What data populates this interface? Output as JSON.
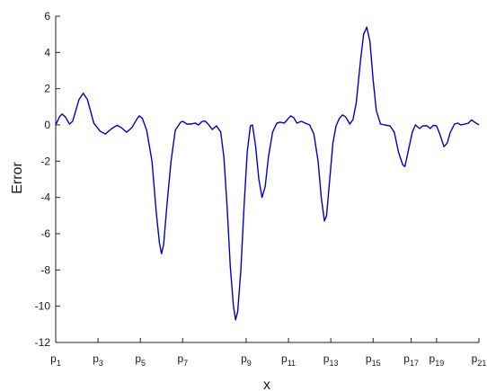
{
  "chart_data": {
    "type": "line",
    "title": "",
    "xlabel": "x",
    "ylabel": "Error",
    "ylim": [
      -12,
      6
    ],
    "yticks": [
      -12,
      -10,
      -8,
      -6,
      -4,
      -2,
      0,
      2,
      4,
      6
    ],
    "xlim": [
      0,
      20
    ],
    "xticks": [
      {
        "x": 0,
        "base": "p",
        "sub": "1"
      },
      {
        "x": 2,
        "base": "p",
        "sub": "3"
      },
      {
        "x": 4,
        "base": "p",
        "sub": "5"
      },
      {
        "x": 6,
        "base": "p",
        "sub": "7"
      },
      {
        "x": 9,
        "base": "p",
        "sub": "9"
      },
      {
        "x": 11,
        "base": "p",
        "sub": "11"
      },
      {
        "x": 13,
        "base": "p",
        "sub": "13"
      },
      {
        "x": 15,
        "base": "p",
        "sub": "15"
      },
      {
        "x": 16.8,
        "base": "p",
        "sub": "17"
      },
      {
        "x": 18,
        "base": "p",
        "sub": "19"
      },
      {
        "x": 20,
        "base": "p",
        "sub": "21"
      }
    ],
    "grid": false,
    "series": [
      {
        "color": "#0000cc",
        "points": [
          [
            0.0,
            0.0
          ],
          [
            0.18,
            0.45
          ],
          [
            0.3,
            0.6
          ],
          [
            0.45,
            0.45
          ],
          [
            0.65,
            0.05
          ],
          [
            0.8,
            0.2
          ],
          [
            1.1,
            1.4
          ],
          [
            1.3,
            1.75
          ],
          [
            1.5,
            1.4
          ],
          [
            1.8,
            0.1
          ],
          [
            2.1,
            -0.35
          ],
          [
            2.35,
            -0.5
          ],
          [
            2.65,
            -0.2
          ],
          [
            2.9,
            -0.02
          ],
          [
            3.1,
            -0.15
          ],
          [
            3.35,
            -0.4
          ],
          [
            3.6,
            -0.15
          ],
          [
            3.85,
            0.35
          ],
          [
            3.95,
            0.5
          ],
          [
            4.1,
            0.35
          ],
          [
            4.3,
            -0.3
          ],
          [
            4.55,
            -2.0
          ],
          [
            4.75,
            -4.8
          ],
          [
            4.9,
            -6.5
          ],
          [
            5.0,
            -7.1
          ],
          [
            5.1,
            -6.6
          ],
          [
            5.25,
            -4.5
          ],
          [
            5.45,
            -2.0
          ],
          [
            5.65,
            -0.3
          ],
          [
            5.9,
            0.15
          ],
          [
            6.0,
            0.2
          ],
          [
            6.2,
            0.05
          ],
          [
            6.4,
            0.05
          ],
          [
            6.6,
            0.1
          ],
          [
            6.75,
            0.0
          ],
          [
            6.9,
            0.18
          ],
          [
            7.05,
            0.22
          ],
          [
            7.2,
            0.05
          ],
          [
            7.4,
            -0.25
          ],
          [
            7.6,
            -0.05
          ],
          [
            7.8,
            -0.4
          ],
          [
            7.95,
            -1.8
          ],
          [
            8.1,
            -4.5
          ],
          [
            8.25,
            -7.8
          ],
          [
            8.4,
            -10.0
          ],
          [
            8.5,
            -10.75
          ],
          [
            8.6,
            -10.3
          ],
          [
            8.75,
            -8.0
          ],
          [
            8.9,
            -4.5
          ],
          [
            9.05,
            -1.5
          ],
          [
            9.2,
            -0.05
          ],
          [
            9.3,
            0.0
          ],
          [
            9.45,
            -1.2
          ],
          [
            9.6,
            -3.0
          ],
          [
            9.75,
            -4.0
          ],
          [
            9.9,
            -3.4
          ],
          [
            10.05,
            -1.8
          ],
          [
            10.25,
            -0.4
          ],
          [
            10.45,
            0.1
          ],
          [
            10.6,
            0.15
          ],
          [
            10.8,
            0.1
          ],
          [
            10.95,
            0.3
          ],
          [
            11.1,
            0.5
          ],
          [
            11.25,
            0.4
          ],
          [
            11.4,
            0.1
          ],
          [
            11.6,
            0.2
          ],
          [
            11.8,
            0.1
          ],
          [
            12.0,
            0.0
          ],
          [
            12.2,
            -0.5
          ],
          [
            12.4,
            -2.0
          ],
          [
            12.55,
            -4.0
          ],
          [
            12.7,
            -5.3
          ],
          [
            12.8,
            -5.0
          ],
          [
            12.95,
            -3.0
          ],
          [
            13.1,
            -1.0
          ],
          [
            13.25,
            -0.05
          ],
          [
            13.4,
            0.35
          ],
          [
            13.55,
            0.55
          ],
          [
            13.7,
            0.45
          ],
          [
            13.9,
            0.05
          ],
          [
            14.05,
            0.3
          ],
          [
            14.2,
            1.2
          ],
          [
            14.4,
            3.5
          ],
          [
            14.55,
            5.0
          ],
          [
            14.7,
            5.4
          ],
          [
            14.85,
            4.6
          ],
          [
            15.0,
            2.5
          ],
          [
            15.15,
            0.8
          ],
          [
            15.35,
            0.05
          ],
          [
            15.55,
            0.0
          ],
          [
            15.8,
            -0.05
          ],
          [
            16.0,
            -0.4
          ],
          [
            16.2,
            -1.5
          ],
          [
            16.4,
            -2.2
          ],
          [
            16.5,
            -2.3
          ],
          [
            16.65,
            -1.5
          ],
          [
            16.85,
            -0.4
          ],
          [
            17.0,
            0.0
          ],
          [
            17.2,
            -0.2
          ],
          [
            17.35,
            -0.05
          ],
          [
            17.55,
            -0.05
          ],
          [
            17.7,
            -0.2
          ],
          [
            17.85,
            -0.02
          ],
          [
            18.0,
            -0.05
          ],
          [
            18.15,
            -0.5
          ],
          [
            18.35,
            -1.2
          ],
          [
            18.5,
            -1.0
          ],
          [
            18.65,
            -0.4
          ],
          [
            18.85,
            0.05
          ],
          [
            19.0,
            0.1
          ],
          [
            19.15,
            0.0
          ],
          [
            19.35,
            0.05
          ],
          [
            19.5,
            0.1
          ],
          [
            19.65,
            0.28
          ],
          [
            19.8,
            0.15
          ],
          [
            20.0,
            0.0
          ]
        ]
      }
    ]
  }
}
